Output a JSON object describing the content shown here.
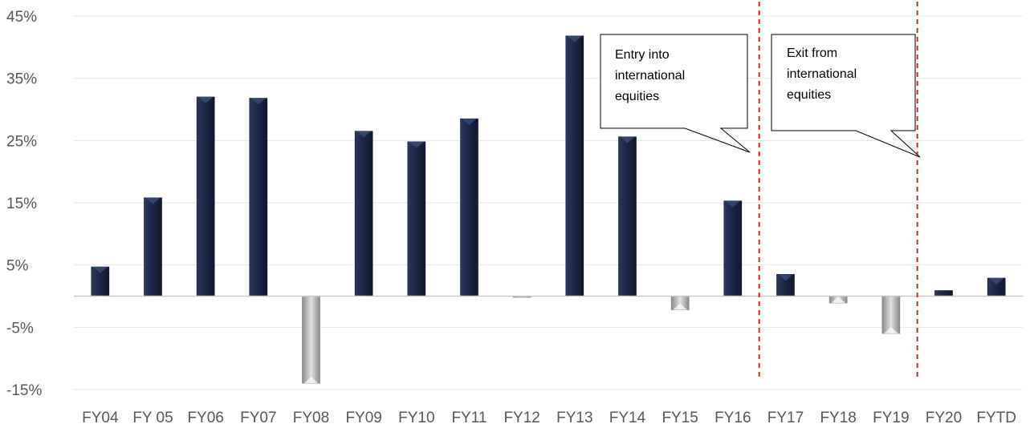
{
  "chart_data": {
    "type": "bar",
    "title": "",
    "xlabel": "",
    "ylabel": "",
    "categories": [
      "FY04",
      "FY 05",
      "FY06",
      "FY07",
      "FY08",
      "FY09",
      "FY10",
      "FY11",
      "FY12",
      "FY13",
      "FY14",
      "FY15",
      "FY16",
      "FY17",
      "FY18",
      "FY19",
      "FY20",
      "FYTD"
    ],
    "values": [
      4.7,
      15.8,
      32.0,
      31.8,
      -14.0,
      26.5,
      24.8,
      28.5,
      -0.1,
      41.8,
      25.6,
      -2.2,
      15.3,
      3.5,
      -1.1,
      -6.0,
      0.9,
      2.9
    ],
    "ylim": [
      -15,
      45
    ],
    "yticks": [
      -15,
      -5,
      5,
      15,
      25,
      35,
      45
    ],
    "ytick_labels": [
      "-15%",
      "-5%",
      "5%",
      "15%",
      "25%",
      "35%",
      "45%"
    ],
    "grid": true,
    "colors": {
      "positive": "#1f2b4d",
      "negative": "#a9a9a9",
      "marker": "#d62728",
      "grid": "#e6e6e6"
    },
    "markers": [
      {
        "after_category": "FY16",
        "style": "dashed-red-line"
      },
      {
        "after_category": "FY19",
        "style": "dashed-red-line"
      }
    ],
    "annotations": [
      {
        "name": "entry",
        "lines": [
          "Entry into",
          "international",
          "equities"
        ]
      },
      {
        "name": "exit",
        "lines": [
          "Exit from",
          "international",
          "equities"
        ]
      }
    ]
  }
}
